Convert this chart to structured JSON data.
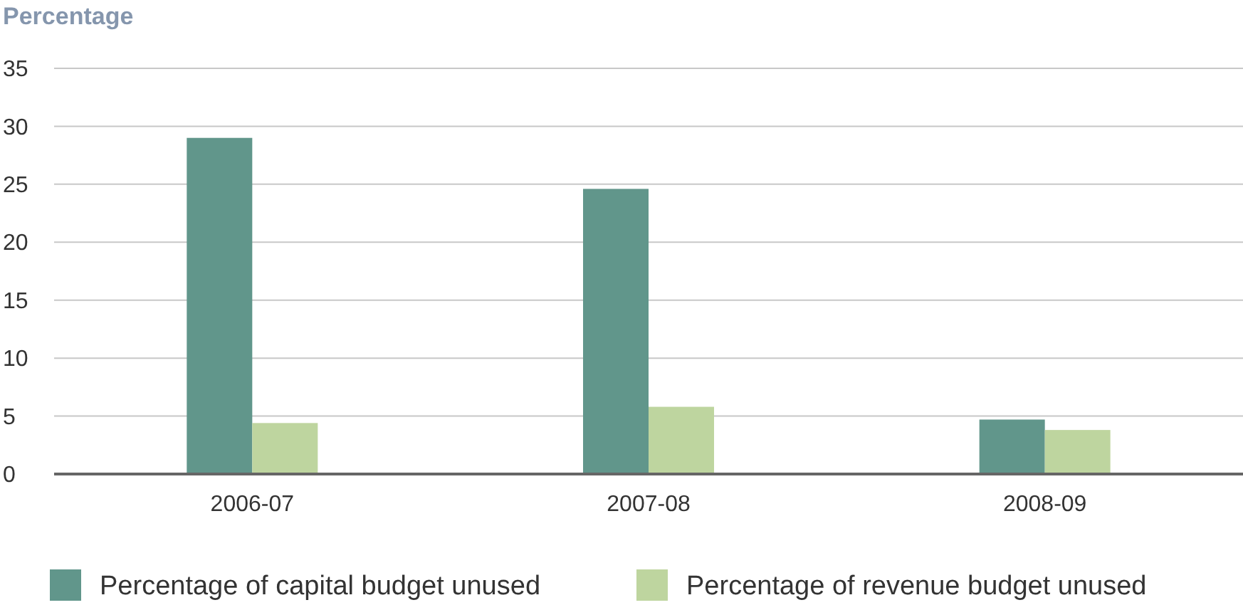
{
  "chart_data": {
    "type": "bar",
    "ylabel": "Percentage",
    "categories": [
      "2006-07",
      "2007-08",
      "2008-09"
    ],
    "series": [
      {
        "name": "Percentage of capital budget unused",
        "color": "#61968b",
        "values": [
          29.0,
          24.6,
          4.7
        ]
      },
      {
        "name": "Percentage of revenue budget unused",
        "color": "#bed59f",
        "values": [
          4.4,
          5.8,
          3.8
        ]
      }
    ],
    "ylim": [
      0,
      35
    ],
    "yticks": [
      0,
      5,
      10,
      15,
      20,
      25,
      30,
      35
    ],
    "grid": "y",
    "legend": "bottom"
  }
}
